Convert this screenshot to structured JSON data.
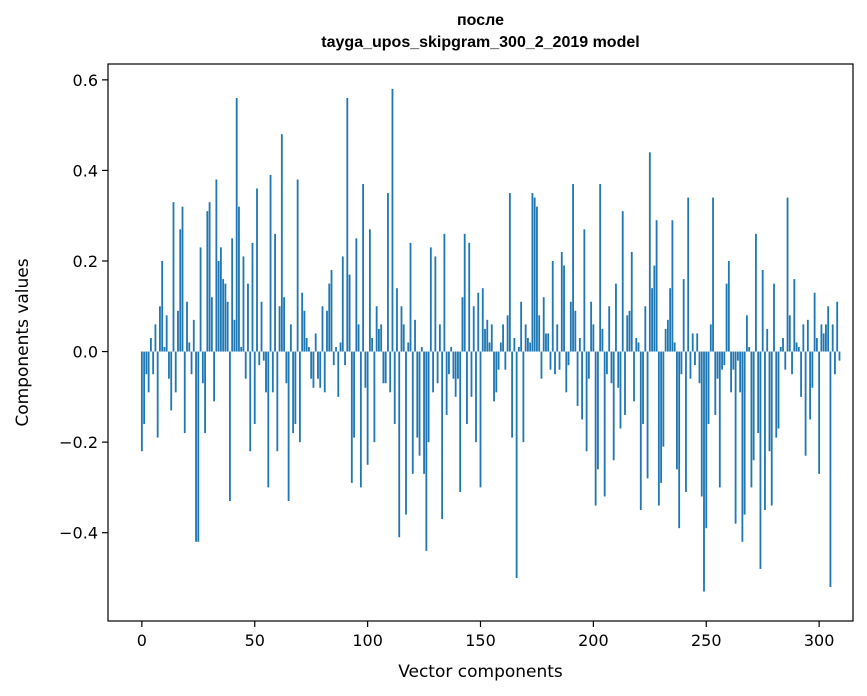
{
  "chart_data": {
    "type": "bar",
    "title": "после",
    "subtitle": "tayga_upos_skipgram_300_2_2019 model",
    "xlabel": "Vector components",
    "ylabel": "Components values",
    "xlim": [
      -15,
      315
    ],
    "ylim": [
      -0.595,
      0.635
    ],
    "xticks": [
      0,
      50,
      100,
      150,
      200,
      250,
      300
    ],
    "yticks": [
      -0.4,
      -0.2,
      0.0,
      0.2,
      0.4,
      0.6
    ],
    "ytick_labels": [
      "−0.4",
      "−0.2",
      "0.0",
      "0.2",
      "0.4",
      "0.6"
    ],
    "bar_color": "#1f77b4",
    "grid": false,
    "x_start": 0,
    "values": [
      -0.22,
      -0.16,
      -0.05,
      -0.09,
      0.03,
      -0.05,
      0.06,
      -0.19,
      0.1,
      0.2,
      0.01,
      0.08,
      -0.06,
      -0.13,
      0.33,
      -0.09,
      0.09,
      0.27,
      0.32,
      -0.18,
      0.11,
      0.02,
      -0.05,
      0.07,
      -0.42,
      -0.42,
      0.23,
      -0.07,
      -0.18,
      0.31,
      0.33,
      0.12,
      -0.11,
      0.38,
      0.2,
      0.23,
      0.16,
      0.15,
      0.11,
      -0.33,
      0.25,
      0.07,
      0.56,
      0.32,
      0.01,
      0.21,
      -0.06,
      0.15,
      -0.22,
      0.24,
      -0.16,
      0.36,
      -0.03,
      0.11,
      -0.02,
      -0.09,
      -0.3,
      0.39,
      -0.09,
      0.26,
      -0.22,
      0.1,
      0.48,
      0.12,
      -0.07,
      -0.33,
      0.06,
      -0.18,
      -0.16,
      0.38,
      -0.2,
      0.13,
      0.09,
      0.03,
      0.01,
      -0.06,
      -0.08,
      0.04,
      -0.06,
      -0.08,
      0.1,
      -0.09,
      0.09,
      0.15,
      0.18,
      -0.03,
      0.01,
      -0.1,
      0.02,
      0.21,
      -0.03,
      0.56,
      0.17,
      -0.29,
      -0.19,
      0.25,
      0.06,
      -0.3,
      0.37,
      -0.08,
      -0.25,
      0.27,
      0.03,
      -0.2,
      0.1,
      0.05,
      0.06,
      -0.07,
      -0.07,
      0.35,
      -0.09,
      0.58,
      -0.16,
      0.14,
      -0.41,
      0.1,
      0.06,
      -0.36,
      0.02,
      0.24,
      -0.27,
      0.07,
      -0.19,
      -0.23,
      0.01,
      -0.27,
      -0.44,
      -0.2,
      0.23,
      -0.09,
      0.21,
      -0.07,
      0.06,
      -0.37,
      0.26,
      -0.14,
      -0.05,
      0.01,
      -0.06,
      -0.1,
      -0.06,
      -0.31,
      0.12,
      0.26,
      -0.16,
      0.24,
      -0.1,
      0.1,
      -0.2,
      0.13,
      -0.3,
      0.14,
      0.05,
      0.07,
      0.02,
      0.06,
      -0.11,
      -0.09,
      -0.04,
      0.02,
      0.06,
      -0.04,
      0.08,
      0.35,
      -0.19,
      0.03,
      -0.5,
      0.01,
      0.11,
      -0.2,
      0.06,
      0.03,
      0.02,
      0.35,
      0.34,
      0.32,
      0.08,
      -0.06,
      0.12,
      0.04,
      0.04,
      -0.04,
      0.2,
      -0.05,
      0.06,
      -0.04,
      0.22,
      0.19,
      -0.09,
      -0.03,
      0.11,
      0.37,
      0.09,
      -0.12,
      0.03,
      -0.15,
      0.27,
      -0.22,
      -0.06,
      0.11,
      0.06,
      -0.34,
      -0.26,
      0.37,
      0.05,
      -0.32,
      -0.05,
      0.1,
      -0.07,
      -0.24,
      0.15,
      -0.08,
      -0.17,
      0.31,
      -0.14,
      0.08,
      0.09,
      0.22,
      -0.11,
      0.03,
      0.02,
      -0.35,
      -0.16,
      0.1,
      -0.28,
      0.44,
      0.14,
      0.19,
      0.29,
      -0.34,
      -0.29,
      -0.21,
      0.05,
      0.07,
      0.14,
      0.29,
      0.02,
      -0.26,
      -0.39,
      -0.05,
      0.16,
      -0.31,
      0.34,
      -0.06,
      0.04,
      -0.03,
      0.04,
      -0.07,
      -0.32,
      -0.53,
      -0.39,
      -0.16,
      0.06,
      0.34,
      -0.14,
      -0.06,
      -0.3,
      -0.04,
      -0.03,
      0.15,
      0.2,
      -0.09,
      -0.04,
      -0.38,
      -0.02,
      -0.09,
      -0.42,
      -0.36,
      0.08,
      0.01,
      -0.3,
      -0.24,
      0.26,
      -0.18,
      -0.48,
      0.18,
      -0.35,
      0.05,
      -0.22,
      -0.34,
      0.15,
      -0.19,
      -0.17,
      0.01,
      0.03,
      -0.04,
      0.34,
      0.08,
      -0.05,
      0.16,
      0.02,
      0.01,
      -0.1,
      0.06,
      -0.23,
      0.07,
      -0.15,
      -0.08,
      0.13,
      0.03,
      -0.27,
      0.06,
      0.04,
      0.06,
      0.1,
      -0.52,
      0.06,
      -0.05,
      0.11,
      -0.02
    ]
  }
}
